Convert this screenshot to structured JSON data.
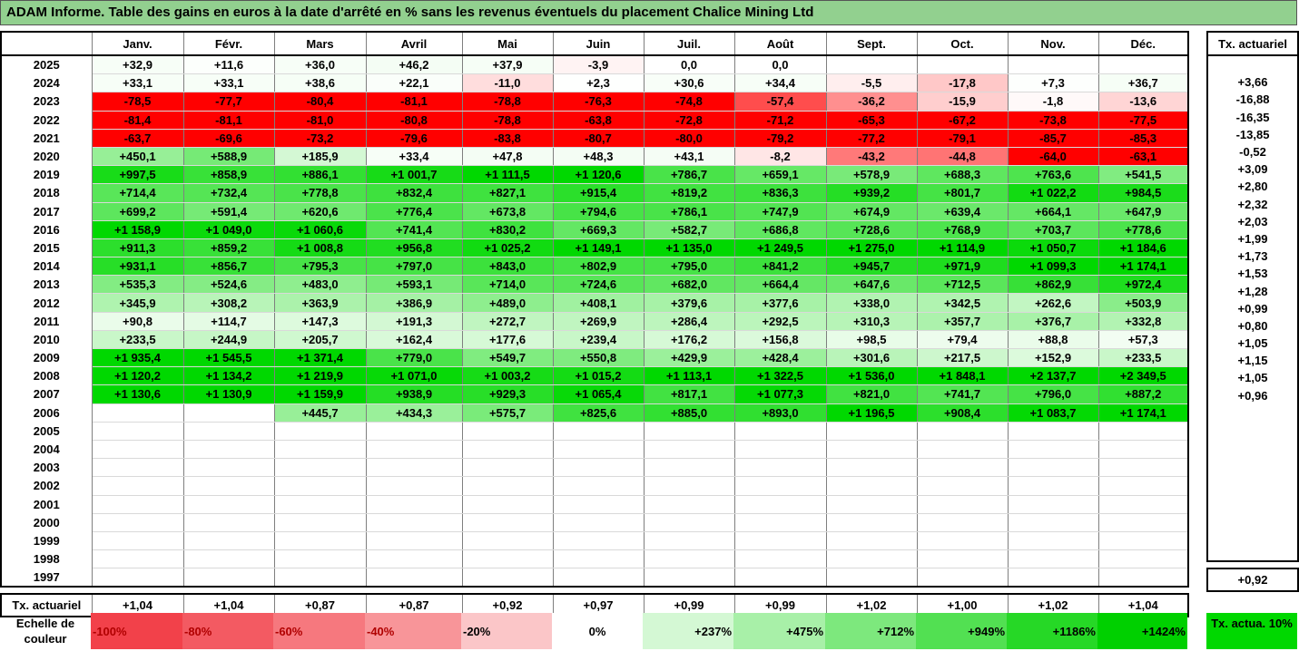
{
  "title": "ADAM Informe. Table des gains en euros à la date d'arrêté en % sans les revenus éventuels du placement Chalice Mining Ltd",
  "columns": [
    "Janv.",
    "Févr.",
    "Mars",
    "Avril",
    "Mai",
    "Juin",
    "Juil.",
    "Août",
    "Sept.",
    "Oct.",
    "Nov.",
    "Déc."
  ],
  "tx_header": "Tx. actuariel",
  "rows": [
    {
      "year": "2025",
      "values": [
        "+32,9",
        "+11,6",
        "+36,0",
        "+46,2",
        "+37,9",
        "-3,9",
        "0,0",
        "0,0",
        "",
        "",
        "",
        ""
      ],
      "tx": ""
    },
    {
      "year": "2024",
      "values": [
        "+33,1",
        "+33,1",
        "+38,6",
        "+22,1",
        "-11,0",
        "+2,3",
        "+30,6",
        "+34,4",
        "-5,5",
        "-17,8",
        "+7,3",
        "+36,7"
      ],
      "tx": "+3,66"
    },
    {
      "year": "2023",
      "values": [
        "-78,5",
        "-77,7",
        "-80,4",
        "-81,1",
        "-78,8",
        "-76,3",
        "-74,8",
        "-57,4",
        "-36,2",
        "-15,9",
        "-1,8",
        "-13,6"
      ],
      "tx": "-16,88"
    },
    {
      "year": "2022",
      "values": [
        "-81,4",
        "-81,1",
        "-81,0",
        "-80,8",
        "-78,8",
        "-63,8",
        "-72,8",
        "-71,2",
        "-65,3",
        "-67,2",
        "-73,8",
        "-77,5"
      ],
      "tx": "-16,35"
    },
    {
      "year": "2021",
      "values": [
        "-63,7",
        "-69,6",
        "-73,2",
        "-79,6",
        "-83,8",
        "-80,7",
        "-80,0",
        "-79,2",
        "-77,2",
        "-79,1",
        "-85,7",
        "-85,3"
      ],
      "tx": "-13,85"
    },
    {
      "year": "2020",
      "values": [
        "+450,1",
        "+588,9",
        "+185,9",
        "+33,4",
        "+47,8",
        "+48,3",
        "+43,1",
        "-8,2",
        "-43,2",
        "-44,8",
        "-64,0",
        "-63,1"
      ],
      "tx": "-0,52"
    },
    {
      "year": "2019",
      "values": [
        "+997,5",
        "+858,9",
        "+886,1",
        "+1 001,7",
        "+1 111,5",
        "+1 120,6",
        "+786,7",
        "+659,1",
        "+578,9",
        "+688,3",
        "+763,6",
        "+541,5"
      ],
      "tx": "+3,09"
    },
    {
      "year": "2018",
      "values": [
        "+714,4",
        "+732,4",
        "+778,8",
        "+832,4",
        "+827,1",
        "+915,4",
        "+819,2",
        "+836,3",
        "+939,2",
        "+801,7",
        "+1 022,2",
        "+984,5"
      ],
      "tx": "+2,80"
    },
    {
      "year": "2017",
      "values": [
        "+699,2",
        "+591,4",
        "+620,6",
        "+776,4",
        "+673,8",
        "+794,6",
        "+786,1",
        "+747,9",
        "+674,9",
        "+639,4",
        "+664,1",
        "+647,9"
      ],
      "tx": "+2,32"
    },
    {
      "year": "2016",
      "values": [
        "+1 158,9",
        "+1 049,0",
        "+1 060,6",
        "+741,4",
        "+830,2",
        "+669,3",
        "+582,7",
        "+686,8",
        "+728,6",
        "+768,9",
        "+703,7",
        "+778,6"
      ],
      "tx": "+2,03"
    },
    {
      "year": "2015",
      "values": [
        "+911,3",
        "+859,2",
        "+1 008,8",
        "+956,8",
        "+1 025,2",
        "+1 149,1",
        "+1 135,0",
        "+1 249,5",
        "+1 275,0",
        "+1 114,9",
        "+1 050,7",
        "+1 184,6"
      ],
      "tx": "+1,99"
    },
    {
      "year": "2014",
      "values": [
        "+931,1",
        "+856,7",
        "+795,3",
        "+797,0",
        "+843,0",
        "+802,9",
        "+795,0",
        "+841,2",
        "+945,7",
        "+971,9",
        "+1 099,3",
        "+1 174,1"
      ],
      "tx": "+1,73"
    },
    {
      "year": "2013",
      "values": [
        "+535,3",
        "+524,6",
        "+483,0",
        "+593,1",
        "+714,0",
        "+724,6",
        "+682,0",
        "+664,4",
        "+647,6",
        "+712,5",
        "+862,9",
        "+972,4"
      ],
      "tx": "+1,53"
    },
    {
      "year": "2012",
      "values": [
        "+345,9",
        "+308,2",
        "+363,9",
        "+386,9",
        "+489,0",
        "+408,1",
        "+379,6",
        "+377,6",
        "+338,0",
        "+342,5",
        "+262,6",
        "+503,9"
      ],
      "tx": "+1,28"
    },
    {
      "year": "2011",
      "values": [
        "+90,8",
        "+114,7",
        "+147,3",
        "+191,3",
        "+272,7",
        "+269,9",
        "+286,4",
        "+292,5",
        "+310,3",
        "+357,7",
        "+376,7",
        "+332,8"
      ],
      "tx": "+0,99"
    },
    {
      "year": "2010",
      "values": [
        "+233,5",
        "+244,9",
        "+205,7",
        "+162,4",
        "+177,6",
        "+239,4",
        "+176,2",
        "+156,8",
        "+98,5",
        "+79,4",
        "+88,8",
        "+57,3"
      ],
      "tx": "+0,80"
    },
    {
      "year": "2009",
      "values": [
        "+1 935,4",
        "+1 545,5",
        "+1 371,4",
        "+779,0",
        "+549,7",
        "+550,8",
        "+429,9",
        "+428,4",
        "+301,6",
        "+217,5",
        "+152,9",
        "+233,5"
      ],
      "tx": "+1,05"
    },
    {
      "year": "2008",
      "values": [
        "+1 120,2",
        "+1 134,2",
        "+1 219,9",
        "+1 071,0",
        "+1 003,2",
        "+1 015,2",
        "+1 113,1",
        "+1 322,5",
        "+1 536,0",
        "+1 848,1",
        "+2 137,7",
        "+2 349,5"
      ],
      "tx": "+1,15"
    },
    {
      "year": "2007",
      "values": [
        "+1 130,6",
        "+1 130,9",
        "+1 159,9",
        "+938,9",
        "+929,3",
        "+1 065,4",
        "+817,1",
        "+1 077,3",
        "+821,0",
        "+741,7",
        "+796,0",
        "+887,2"
      ],
      "tx": "+1,05"
    },
    {
      "year": "2006",
      "values": [
        "",
        "",
        "+445,7",
        "+434,3",
        "+575,7",
        "+825,6",
        "+885,0",
        "+893,0",
        "+1 196,5",
        "+908,4",
        "+1 083,7",
        "+1 174,1"
      ],
      "tx": "+0,96"
    },
    {
      "year": "2005",
      "values": [
        "",
        "",
        "",
        "",
        "",
        "",
        "",
        "",
        "",
        "",
        "",
        ""
      ],
      "tx": ""
    },
    {
      "year": "2004",
      "values": [
        "",
        "",
        "",
        "",
        "",
        "",
        "",
        "",
        "",
        "",
        "",
        ""
      ],
      "tx": ""
    },
    {
      "year": "2003",
      "values": [
        "",
        "",
        "",
        "",
        "",
        "",
        "",
        "",
        "",
        "",
        "",
        ""
      ],
      "tx": ""
    },
    {
      "year": "2002",
      "values": [
        "",
        "",
        "",
        "",
        "",
        "",
        "",
        "",
        "",
        "",
        "",
        ""
      ],
      "tx": ""
    },
    {
      "year": "2001",
      "values": [
        "",
        "",
        "",
        "",
        "",
        "",
        "",
        "",
        "",
        "",
        "",
        ""
      ],
      "tx": ""
    },
    {
      "year": "2000",
      "values": [
        "",
        "",
        "",
        "",
        "",
        "",
        "",
        "",
        "",
        "",
        "",
        ""
      ],
      "tx": ""
    },
    {
      "year": "1999",
      "values": [
        "",
        "",
        "",
        "",
        "",
        "",
        "",
        "",
        "",
        "",
        "",
        ""
      ],
      "tx": ""
    },
    {
      "year": "1998",
      "values": [
        "",
        "",
        "",
        "",
        "",
        "",
        "",
        "",
        "",
        "",
        "",
        ""
      ],
      "tx": ""
    },
    {
      "year": "1997",
      "values": [
        "",
        "",
        "",
        "",
        "",
        "",
        "",
        "",
        "",
        "",
        "",
        ""
      ],
      "tx": ""
    }
  ],
  "footer": {
    "label": "Tx. actuariel",
    "values": [
      "+1,04",
      "+1,04",
      "+0,87",
      "+0,87",
      "+0,92",
      "+0,97",
      "+0,99",
      "+0,99",
      "+1,02",
      "+1,00",
      "+1,02",
      "+1,04"
    ],
    "tx": "+0,92"
  },
  "scale": {
    "label": "Echelle de couleur",
    "items": [
      {
        "text": "-100%",
        "color": "#f2414a"
      },
      {
        "text": "-80%",
        "color": "#f35a62"
      },
      {
        "text": "-60%",
        "color": "#f6787e"
      },
      {
        "text": "-40%",
        "color": "#f89599"
      },
      {
        "text": "-20%",
        "color": "#fbc6c8"
      },
      {
        "text": "0%",
        "color": "#ffffff"
      },
      {
        "text": "+237%",
        "color": "#d4f8d4"
      },
      {
        "text": "+475%",
        "color": "#a8f0a8"
      },
      {
        "text": "+712%",
        "color": "#7de87d"
      },
      {
        "text": "+949%",
        "color": "#52e052"
      },
      {
        "text": "+1186%",
        "color": "#26d826"
      },
      {
        "text": "+1424%",
        "color": "#00d000"
      }
    ],
    "tx_label": "Tx. actua. 10%",
    "tx_color": "#00d800"
  }
}
